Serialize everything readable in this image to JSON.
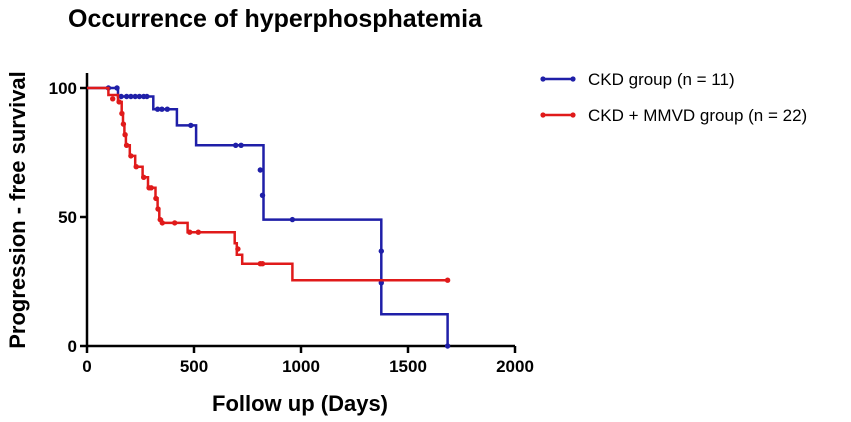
{
  "chart_data": {
    "type": "line",
    "subtype": "kaplan-meier-step",
    "title": "Occurrence of hyperphosphatemia",
    "xlabel": "Follow up (Days)",
    "ylabel": "Progression - free survival",
    "xlim": [
      0,
      2000
    ],
    "ylim": [
      0,
      100
    ],
    "xticks": [
      0,
      500,
      1000,
      1500,
      2000
    ],
    "yticks": [
      0,
      50,
      100
    ],
    "xtick_labels": [
      "0",
      "500",
      "1000",
      "1500",
      "2000"
    ],
    "ytick_labels": [
      "0",
      "50",
      "100"
    ],
    "grid": false,
    "legend_position": "top-right",
    "series": [
      {
        "name": "CKD group (n = 11)",
        "color": "#1f1fa8",
        "steps": [
          [
            0,
            100
          ],
          [
            145,
            100
          ],
          [
            145,
            96.7
          ],
          [
            310,
            96.7
          ],
          [
            310,
            91.8
          ],
          [
            420,
            91.8
          ],
          [
            420,
            85.5
          ],
          [
            510,
            85.5
          ],
          [
            510,
            77.8
          ],
          [
            825,
            77.8
          ],
          [
            825,
            49
          ],
          [
            1375,
            49
          ],
          [
            1375,
            12.3
          ],
          [
            1685,
            12.3
          ],
          [
            1685,
            0
          ]
        ],
        "censored": [
          [
            100,
            100
          ],
          [
            140,
            100
          ],
          [
            160,
            96.7
          ],
          [
            185,
            96.7
          ],
          [
            205,
            96.7
          ],
          [
            225,
            96.7
          ],
          [
            245,
            96.7
          ],
          [
            265,
            96.7
          ],
          [
            280,
            96.7
          ],
          [
            330,
            91.8
          ],
          [
            350,
            91.8
          ],
          [
            375,
            91.8
          ],
          [
            485,
            85.5
          ],
          [
            695,
            77.8
          ],
          [
            720,
            77.8
          ]
        ],
        "event_markers": [
          [
            810,
            68.2
          ],
          [
            820,
            58.4
          ],
          [
            960,
            49
          ],
          [
            1375,
            36.8
          ],
          [
            1375,
            24.5
          ],
          [
            1685,
            0
          ]
        ]
      },
      {
        "name": "CKD + MMVD group (n = 22)",
        "color": "#e01a1a",
        "steps": [
          [
            0,
            100
          ],
          [
            100,
            100
          ],
          [
            100,
            97.3
          ],
          [
            145,
            97.3
          ],
          [
            145,
            94.6
          ],
          [
            162,
            94.6
          ],
          [
            162,
            90.1
          ],
          [
            168,
            90.1
          ],
          [
            168,
            86
          ],
          [
            175,
            86
          ],
          [
            175,
            81.9
          ],
          [
            182,
            81.9
          ],
          [
            182,
            77.8
          ],
          [
            200,
            77.8
          ],
          [
            200,
            73.7
          ],
          [
            225,
            73.7
          ],
          [
            225,
            69.5
          ],
          [
            260,
            69.5
          ],
          [
            260,
            65.4
          ],
          [
            285,
            65.4
          ],
          [
            285,
            61.3
          ],
          [
            320,
            61.3
          ],
          [
            320,
            57.2
          ],
          [
            330,
            57.2
          ],
          [
            330,
            53.1
          ],
          [
            338,
            53.1
          ],
          [
            338,
            49
          ],
          [
            350,
            49
          ],
          [
            350,
            47.7
          ],
          [
            470,
            47.7
          ],
          [
            470,
            44.1
          ],
          [
            690,
            44.1
          ],
          [
            690,
            39.8
          ],
          [
            700,
            39.8
          ],
          [
            700,
            35.4
          ],
          [
            725,
            35.4
          ],
          [
            725,
            31.9
          ],
          [
            960,
            31.9
          ],
          [
            960,
            25.5
          ],
          [
            1685,
            25.5
          ]
        ],
        "censored": [
          [
            120,
            95.8
          ],
          [
            410,
            47.7
          ],
          [
            480,
            44.1
          ],
          [
            520,
            44.1
          ],
          [
            705,
            37.6
          ],
          [
            810,
            31.9
          ],
          [
            820,
            31.9
          ],
          [
            1685,
            25.5
          ]
        ],
        "event_markers": [
          [
            150,
            94.6
          ],
          [
            163,
            90.1
          ],
          [
            170,
            86
          ],
          [
            178,
            81.9
          ],
          [
            185,
            77.8
          ],
          [
            205,
            73.7
          ],
          [
            230,
            69.5
          ],
          [
            265,
            65.4
          ],
          [
            290,
            61.3
          ],
          [
            300,
            61.3
          ],
          [
            322,
            57.2
          ],
          [
            332,
            53.1
          ],
          [
            342,
            49
          ],
          [
            352,
            47.7
          ]
        ]
      }
    ]
  }
}
